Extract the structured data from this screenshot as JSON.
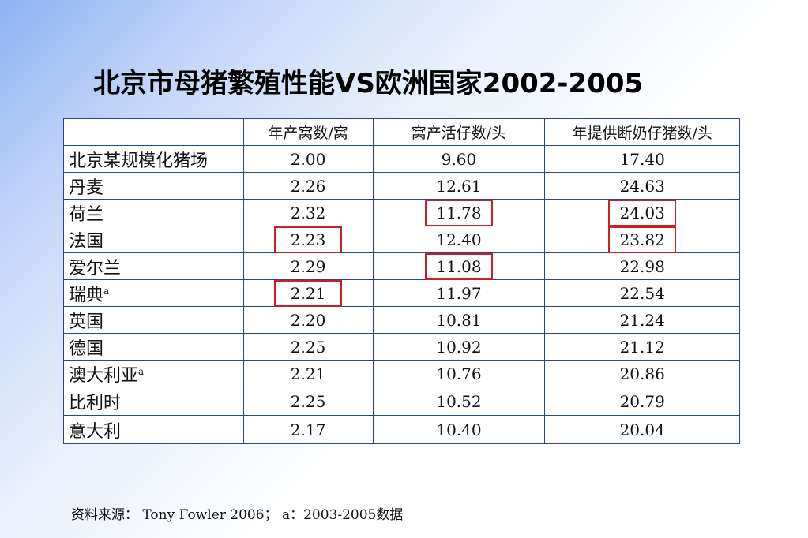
{
  "title": "北京市母猪繁殖性能VS欧洲国家2002-2005",
  "table": {
    "headers": [
      "",
      "年产窝数/窝",
      "窝产活仔数/头",
      "年提供断奶仔猪数/头"
    ],
    "rows": [
      {
        "name": "北京某规模化猪场",
        "note": "",
        "values": [
          "2.00",
          "9.60",
          "17.40"
        ]
      },
      {
        "name": "丹麦",
        "note": "",
        "values": [
          "2.26",
          "12.61",
          "24.63"
        ]
      },
      {
        "name": "荷兰",
        "note": "",
        "values": [
          "2.32",
          "11.78",
          "24.03"
        ]
      },
      {
        "name": "法国",
        "note": "",
        "values": [
          "2.23",
          "12.40",
          "23.82"
        ]
      },
      {
        "name": "爱尔兰",
        "note": "",
        "values": [
          "2.29",
          "11.08",
          "22.98"
        ]
      },
      {
        "name": "瑞典",
        "note": "a",
        "values": [
          "2.21",
          "11.97",
          "22.54"
        ]
      },
      {
        "name": "英国",
        "note": "",
        "values": [
          "2.20",
          "10.81",
          "21.24"
        ]
      },
      {
        "name": "德国",
        "note": "",
        "values": [
          "2.25",
          "10.92",
          "21.12"
        ]
      },
      {
        "name": "澳大利亚",
        "note": "a",
        "values": [
          "2.21",
          "10.76",
          "20.86"
        ]
      },
      {
        "name": "比利时",
        "note": "",
        "values": [
          "2.25",
          "10.52",
          "20.79"
        ]
      },
      {
        "name": "意大利",
        "note": "",
        "values": [
          "2.17",
          "10.40",
          "20.04"
        ]
      }
    ]
  },
  "highlights": [
    {
      "row": 2,
      "col": 2
    },
    {
      "row": 2,
      "col": 3
    },
    {
      "row": 3,
      "col": 1
    },
    {
      "row": 3,
      "col": 3
    },
    {
      "row": 4,
      "col": 2
    },
    {
      "row": 5,
      "col": 1
    }
  ],
  "colors": {
    "border": "#2c3f9c",
    "highlight": "#cc1f1f"
  },
  "footer": "资料来源： Tony Fowler 2006； a：2003-2005数据"
}
